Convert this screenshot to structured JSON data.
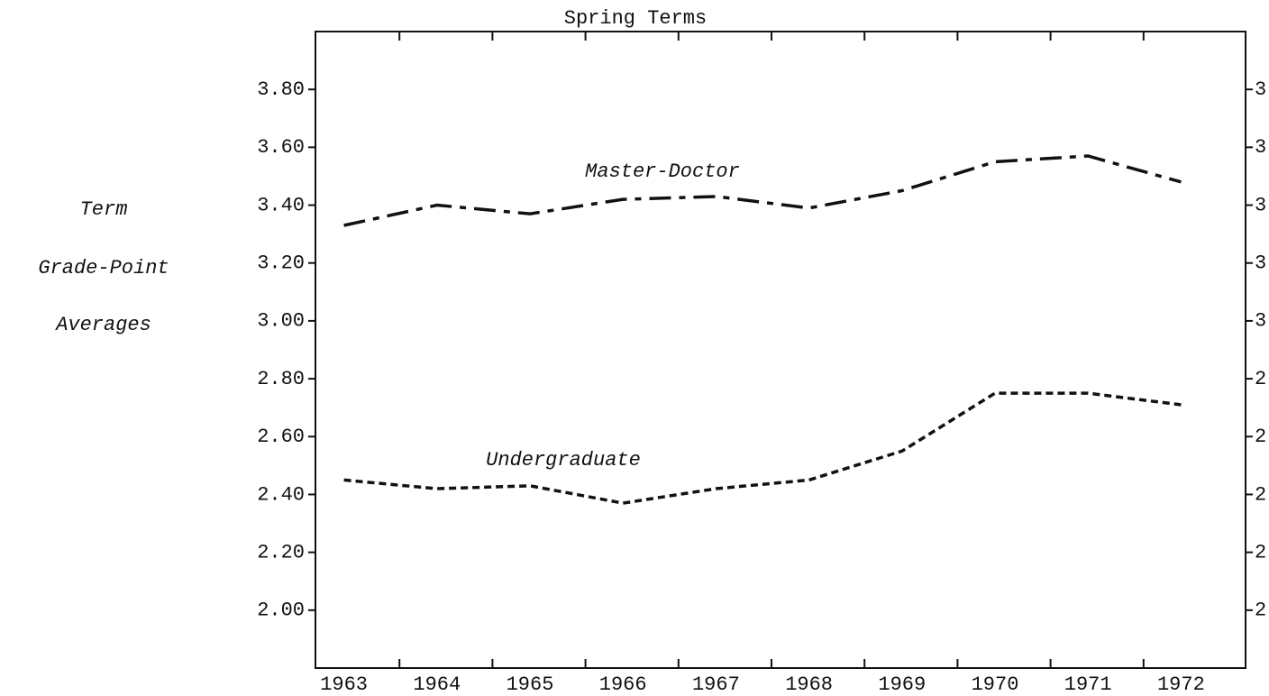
{
  "chart_data": {
    "type": "line",
    "title": "Spring Terms",
    "y_label": [
      "Term",
      "Grade-Point",
      "Averages"
    ],
    "categories": [
      "1963",
      "1964",
      "1965",
      "1966",
      "1967",
      "1968",
      "1969",
      "1970",
      "1971",
      "1972"
    ],
    "series": [
      {
        "name": "Master-Doctor",
        "color": "#111111",
        "dash": "24,9,7,9",
        "values": [
          3.33,
          3.4,
          3.37,
          3.42,
          3.43,
          3.39,
          3.45,
          3.55,
          3.57,
          3.48
        ]
      },
      {
        "name": "Undergraduate",
        "color": "#111111",
        "dash": "8,5",
        "values": [
          2.45,
          2.42,
          2.43,
          2.37,
          2.42,
          2.45,
          2.55,
          2.75,
          2.75,
          2.71
        ]
      }
    ],
    "ylim": [
      1.8,
      4.0
    ],
    "yticks": [
      {
        "value": 2.0,
        "label": "2.00"
      },
      {
        "value": 2.2,
        "label": "2.20"
      },
      {
        "value": 2.4,
        "label": "2.40"
      },
      {
        "value": 2.6,
        "label": "2.60"
      },
      {
        "value": 2.8,
        "label": "2.80"
      },
      {
        "value": 3.0,
        "label": "3.00"
      },
      {
        "value": 3.2,
        "label": "3.20"
      },
      {
        "value": 3.4,
        "label": "3.40"
      },
      {
        "value": 3.6,
        "label": "3.60"
      },
      {
        "value": 3.8,
        "label": "3.80"
      }
    ],
    "right_axis": true
  }
}
